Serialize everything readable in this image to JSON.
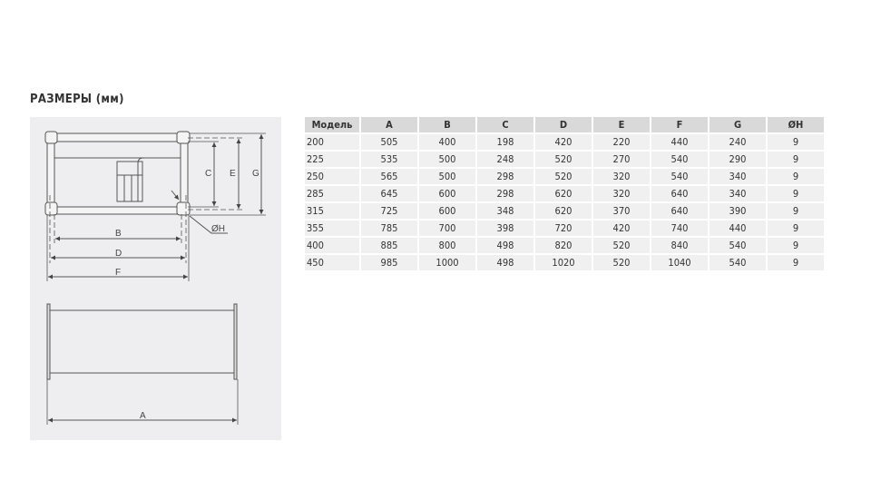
{
  "title": "РАЗМЕРЫ (мм)",
  "diagram": {
    "labels": {
      "A": "A",
      "B": "B",
      "C": "C",
      "D": "D",
      "E": "E",
      "F": "F",
      "G": "G",
      "H": "ØH"
    }
  },
  "table": {
    "headers": [
      "Модель",
      "A",
      "B",
      "C",
      "D",
      "E",
      "F",
      "G",
      "ØH"
    ],
    "rows": [
      [
        "200",
        "505",
        "400",
        "198",
        "420",
        "220",
        "440",
        "240",
        "9"
      ],
      [
        "225",
        "535",
        "500",
        "248",
        "520",
        "270",
        "540",
        "290",
        "9"
      ],
      [
        "250",
        "565",
        "500",
        "298",
        "520",
        "320",
        "540",
        "340",
        "9"
      ],
      [
        "285",
        "645",
        "600",
        "298",
        "620",
        "320",
        "640",
        "340",
        "9"
      ],
      [
        "315",
        "725",
        "600",
        "348",
        "620",
        "370",
        "640",
        "390",
        "9"
      ],
      [
        "355",
        "785",
        "700",
        "398",
        "720",
        "420",
        "740",
        "440",
        "9"
      ],
      [
        "400",
        "885",
        "800",
        "498",
        "820",
        "520",
        "840",
        "540",
        "9"
      ],
      [
        "450",
        "985",
        "1000",
        "498",
        "1020",
        "520",
        "1040",
        "540",
        "9"
      ]
    ]
  }
}
